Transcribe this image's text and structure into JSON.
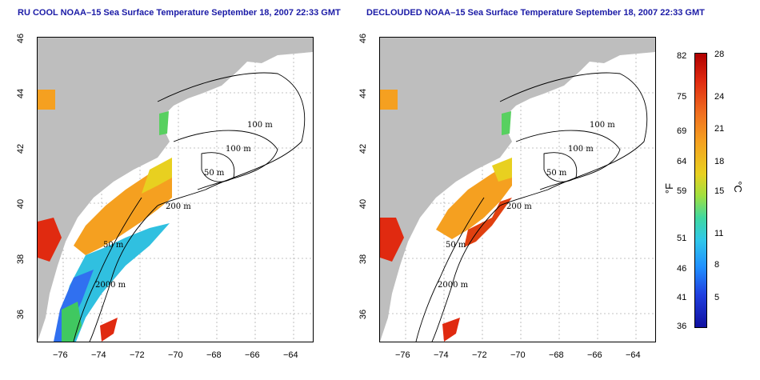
{
  "left_map": {
    "title": "RU COOL NOAA–15 Sea Surface Temperature September 18, 2007 22:33 GMT",
    "contour_labels": [
      "100 m",
      "100 m",
      "50 m",
      "200 m",
      "50 m",
      "2000 m"
    ]
  },
  "right_map": {
    "title": "DECLOUDED NOAA–15 Sea Surface Temperature September 18, 2007 22:33 GMT",
    "contour_labels": [
      "100 m",
      "100 m",
      "50 m",
      "200 m",
      "50 m",
      "2000 m"
    ]
  },
  "x_ticks": [
    "−76",
    "−74",
    "−72",
    "−70",
    "−68",
    "−66",
    "−64"
  ],
  "y_ticks": [
    "46",
    "44",
    "42",
    "40",
    "38",
    "36"
  ],
  "colorbar": {
    "fahrenheit_label": "°F",
    "celsius_label": "°C",
    "fahrenheit_ticks": [
      "82",
      "75",
      "69",
      "64",
      "59",
      "51",
      "46",
      "41",
      "36"
    ],
    "celsius_ticks": [
      "28",
      "24",
      "21",
      "18",
      "15",
      "11",
      "8",
      "5"
    ]
  },
  "colors": {
    "land": "#bebebe",
    "water": "#ffffff",
    "title": "#1a1aa6",
    "warm": "#f5a020",
    "hot": "#e02a10",
    "mid": "#e8e020",
    "cool": "#30c8e8",
    "cold": "#2060ff"
  }
}
